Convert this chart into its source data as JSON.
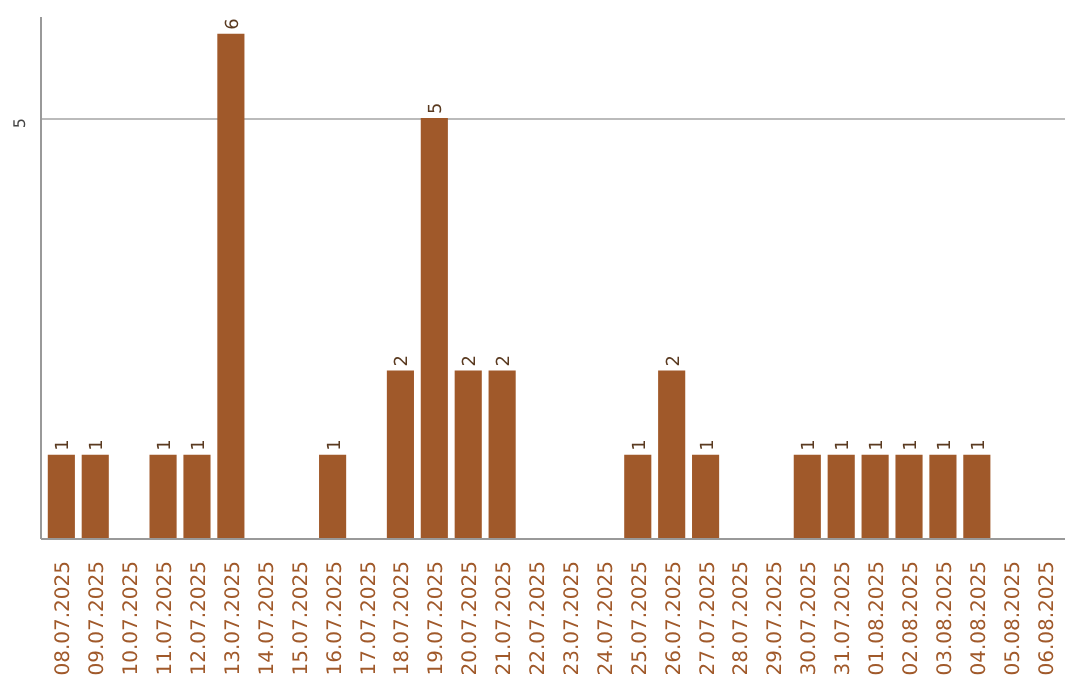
{
  "chart_data": {
    "type": "bar",
    "categories": [
      "08.07.2025",
      "09.07.2025",
      "10.07.2025",
      "11.07.2025",
      "12.07.2025",
      "13.07.2025",
      "14.07.2025",
      "15.07.2025",
      "16.07.2025",
      "17.07.2025",
      "18.07.2025",
      "19.07.2025",
      "20.07.2025",
      "21.07.2025",
      "22.07.2025",
      "23.07.2025",
      "24.07.2025",
      "25.07.2025",
      "26.07.2025",
      "27.07.2025",
      "28.07.2025",
      "29.07.2025",
      "30.07.2025",
      "31.07.2025",
      "01.08.2025",
      "02.08.2025",
      "03.08.2025",
      "04.08.2025",
      "05.08.2025",
      "06.08.2025"
    ],
    "values": [
      1,
      1,
      0,
      1,
      1,
      6,
      0,
      0,
      1,
      0,
      2,
      5,
      2,
      2,
      0,
      0,
      0,
      1,
      2,
      1,
      0,
      0,
      1,
      1,
      1,
      1,
      1,
      1,
      0,
      0
    ],
    "value_labels": [
      "1",
      "1",
      null,
      "1",
      "1",
      "6",
      null,
      null,
      "1",
      null,
      "2",
      "5",
      "2",
      "2",
      null,
      null,
      null,
      "1",
      "2",
      "1",
      null,
      null,
      "1",
      "1",
      "1",
      "1",
      "1",
      "1",
      null,
      null
    ],
    "color": "#a0592a",
    "ylim": [
      0,
      6.2
    ],
    "yticks": [
      5
    ],
    "grid": "y"
  }
}
